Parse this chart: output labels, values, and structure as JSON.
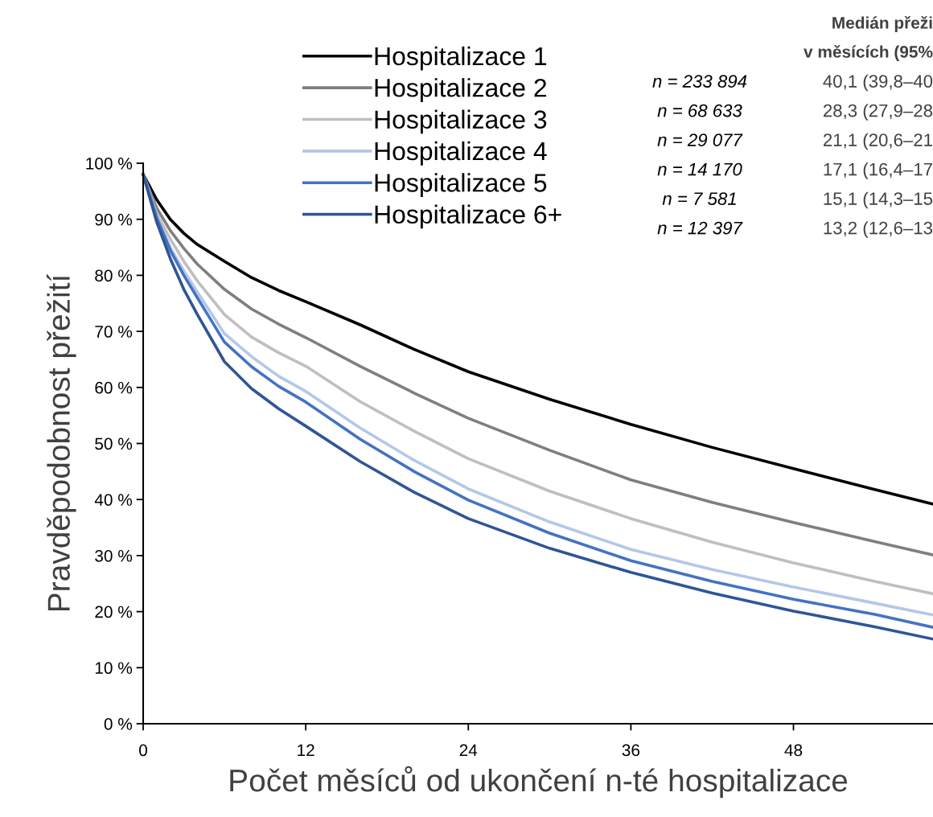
{
  "chart_data": {
    "type": "line",
    "xlabel": "Počet měsíců od ukončení n-té hospitalizace",
    "ylabel": "Pravděpodobnost přežití",
    "x": [
      0,
      1,
      2,
      3,
      4,
      6,
      8,
      10,
      12,
      16,
      20,
      24,
      30,
      36,
      42,
      48,
      54,
      58.3
    ],
    "series": [
      {
        "name": "Hospitalizace 1",
        "color": "#000000",
        "values": [
          98,
          93.5,
          90,
          87.5,
          85.5,
          82.5,
          79.6,
          77.3,
          75.3,
          71.2,
          66.8,
          62.8,
          57.9,
          53.4,
          49.3,
          45.5,
          41.8,
          39.2
        ]
      },
      {
        "name": "Hospitalizace 2",
        "color": "#7f7f7f",
        "values": [
          98,
          92,
          88,
          84.8,
          82,
          77.5,
          74,
          71.3,
          68.9,
          63.8,
          59,
          54.5,
          48.8,
          43.5,
          39.5,
          35.9,
          32.5,
          30.1
        ]
      },
      {
        "name": "Hospitalizace 3",
        "color": "#bfbfbf",
        "values": [
          98,
          91,
          86.5,
          82.5,
          79,
          73,
          69,
          66.2,
          63.8,
          57.5,
          52.2,
          47.3,
          41.5,
          36.6,
          32.4,
          28.7,
          25.4,
          23.2
        ]
      },
      {
        "name": "Hospitalizace 4",
        "color": "#b4c7e7",
        "values": [
          98,
          90.5,
          85,
          80.8,
          77,
          69.6,
          65.5,
          62,
          59.3,
          52.8,
          47,
          41.9,
          36,
          31.1,
          27.5,
          24.4,
          21.5,
          19.4
        ]
      },
      {
        "name": "Hospitalizace 5",
        "color": "#4472c4",
        "values": [
          98,
          90.3,
          84.5,
          80,
          76,
          68.1,
          63.7,
          60.2,
          57.4,
          50.8,
          45,
          39.9,
          34,
          29.1,
          25.4,
          22.2,
          19.5,
          17.2
        ]
      },
      {
        "name": "Hospitalizace 6+",
        "color": "#2f5597",
        "values": [
          98,
          89.5,
          83,
          77.5,
          73,
          64.6,
          59.8,
          56.2,
          53.1,
          46.8,
          41.3,
          36.6,
          31.3,
          27,
          23.3,
          20.1,
          17.3,
          15.1
        ]
      }
    ],
    "xlim": [
      0,
      58.3
    ],
    "xticks": [
      0,
      12,
      24,
      36,
      48
    ],
    "ylim": [
      0,
      100
    ],
    "yticks": [
      {
        "value": 0,
        "label": "0 %"
      },
      {
        "value": 10,
        "label": "10 %"
      },
      {
        "value": 20,
        "label": "20 %"
      },
      {
        "value": 30,
        "label": "30 %"
      },
      {
        "value": 40,
        "label": "40 %"
      },
      {
        "value": 50,
        "label": "50 %"
      },
      {
        "value": 60,
        "label": "60 %"
      },
      {
        "value": 70,
        "label": "70 %"
      },
      {
        "value": 80,
        "label": "80 %"
      },
      {
        "value": 90,
        "label": "90 %"
      },
      {
        "value": 100,
        "label": "100 %"
      }
    ],
    "grid": false,
    "legend": "top",
    "marker": "none",
    "line_style": "solid",
    "annotations": [
      "Medián přeži",
      "v měsících (95%",
      "n = 233 894",
      "40,1 (39,8–40",
      "n = 68 633",
      "28,3 (27,9–28",
      "n = 29 077",
      "21,1 (20,6–21",
      "n = 14 170",
      "17,1 (16,4–17",
      "n = 7 581",
      "15,1 (14,3–15",
      "n = 12 397",
      "13,2 (12,6–13"
    ]
  }
}
